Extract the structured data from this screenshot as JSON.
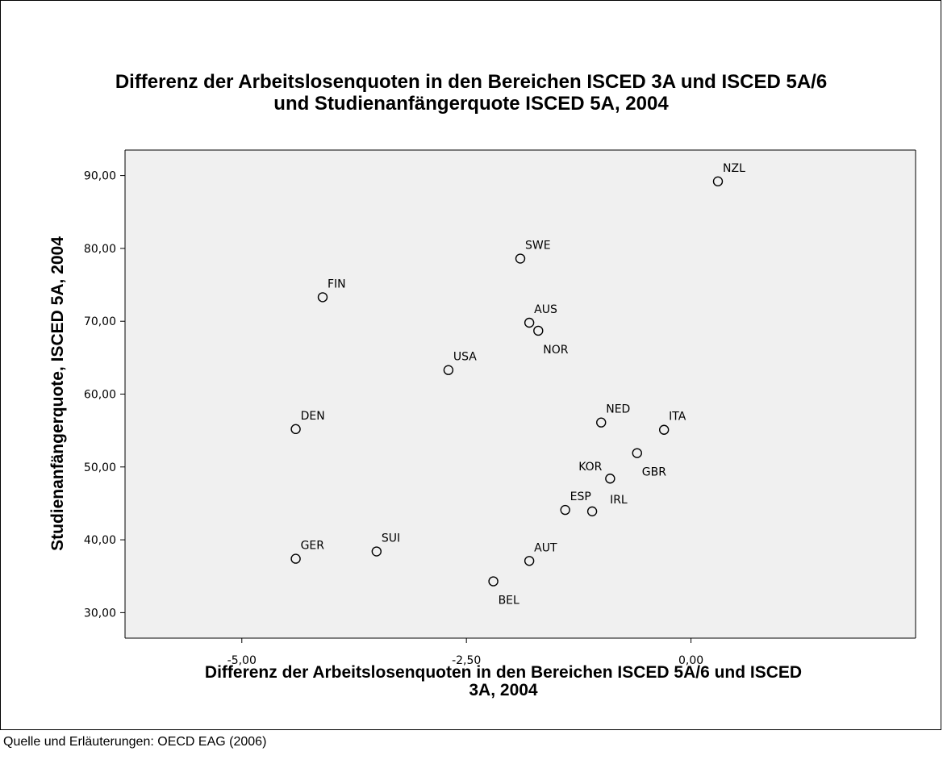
{
  "chart_data": {
    "type": "scatter",
    "title": [
      "Differenz der Arbeitslosenquoten in den Bereichen ISCED 3A und ISCED 5A/6",
      "und Studienanfängerquote  ISCED 5A, 2004"
    ],
    "xlabel": [
      "Differenz der Arbeitslosenquoten in den Bereichen ISCED 5A/6 und ISCED",
      "3A, 2004"
    ],
    "ylabel": "Studienanfängerquote, ISCED 5A, 2004",
    "xlim": [
      -6.3,
      2.5
    ],
    "ylim": [
      26.5,
      93.5
    ],
    "xticks": [
      -5.0,
      -2.5,
      0.0
    ],
    "xtick_labels": [
      "-5,00",
      "-2,50",
      "0,00"
    ],
    "yticks": [
      30,
      40,
      50,
      60,
      70,
      80,
      90
    ],
    "ytick_labels": [
      "30,00",
      "40,00",
      "50,00",
      "60,00",
      "70,00",
      "80,00",
      "90,00"
    ],
    "grid": false,
    "plot_background": "#f0f0f0",
    "marker": "open-circle",
    "points": [
      {
        "label": "NZL",
        "x": 0.3,
        "y": 89.2,
        "label_pos": "above-right"
      },
      {
        "label": "SWE",
        "x": -1.9,
        "y": 78.6,
        "label_pos": "above-right"
      },
      {
        "label": "FIN",
        "x": -4.1,
        "y": 73.3,
        "label_pos": "above-right"
      },
      {
        "label": "AUS",
        "x": -1.8,
        "y": 69.8,
        "label_pos": "above-right"
      },
      {
        "label": "NOR",
        "x": -1.7,
        "y": 68.7,
        "label_pos": "below-right"
      },
      {
        "label": "USA",
        "x": -2.7,
        "y": 63.3,
        "label_pos": "above-right"
      },
      {
        "label": "DEN",
        "x": -4.4,
        "y": 55.2,
        "label_pos": "above-right"
      },
      {
        "label": "NED",
        "x": -1.0,
        "y": 56.1,
        "label_pos": "above-right"
      },
      {
        "label": "ITA",
        "x": -0.3,
        "y": 55.1,
        "label_pos": "above-right"
      },
      {
        "label": "GBR",
        "x": -0.6,
        "y": 51.9,
        "label_pos": "below-right"
      },
      {
        "label": "KOR",
        "x": -0.9,
        "y": 48.4,
        "label_pos": "above-left"
      },
      {
        "label": "IRL",
        "x": -1.1,
        "y": 43.9,
        "label_pos": "above-right-far"
      },
      {
        "label": "ESP",
        "x": -1.4,
        "y": 44.1,
        "label_pos": "above-right"
      },
      {
        "label": "SUI",
        "x": -3.5,
        "y": 38.4,
        "label_pos": "above-right"
      },
      {
        "label": "GER",
        "x": -4.4,
        "y": 37.4,
        "label_pos": "above-right"
      },
      {
        "label": "AUT",
        "x": -1.8,
        "y": 37.1,
        "label_pos": "above-right"
      },
      {
        "label": "BEL",
        "x": -2.2,
        "y": 34.3,
        "label_pos": "below-right"
      }
    ]
  },
  "footer": {
    "source": "Quelle und Erläuterungen: OECD EAG (2006)"
  }
}
